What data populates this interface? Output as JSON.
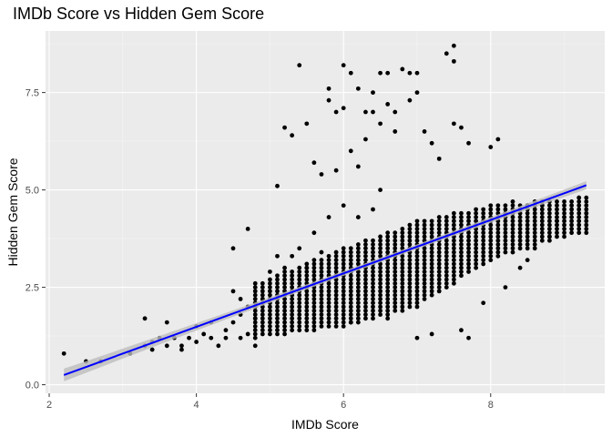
{
  "chart_data": {
    "type": "scatter",
    "title": "IMDb Score vs Hidden Gem Score",
    "xlabel": "IMDb Score",
    "ylabel": "Hidden Gem Score",
    "xlim": [
      1.95,
      9.55
    ],
    "ylim": [
      -0.22,
      9.08
    ],
    "x_ticks": [
      2,
      4,
      6,
      8
    ],
    "x_tick_labels": [
      "2",
      "4",
      "6",
      "8"
    ],
    "y_ticks": [
      0,
      2.5,
      5,
      7.5
    ],
    "y_tick_labels": [
      "0.0",
      "2.5",
      "5.0",
      "7.5"
    ],
    "grid": true,
    "legend": "none",
    "colors": {
      "panel": "#ebebeb",
      "grid_major": "#ffffff",
      "grid_minor": "#f5f5f5",
      "points": "#000000",
      "trend": "#0000ff",
      "ribbon": "#bdbdbd"
    },
    "trend_line": {
      "method": "linear",
      "start": [
        2.2,
        0.25
      ],
      "end": [
        9.3,
        5.12
      ],
      "se_band": true
    },
    "bulk_region": {
      "x_range": [
        4.8,
        9.3
      ],
      "lower": [
        [
          4.8,
          1.2
        ],
        [
          6.0,
          1.5
        ],
        [
          7.0,
          2.0
        ],
        [
          8.0,
          3.2
        ],
        [
          9.2,
          3.9
        ]
      ],
      "upper": [
        [
          4.8,
          2.6
        ],
        [
          6.0,
          3.5
        ],
        [
          7.0,
          4.2
        ],
        [
          8.0,
          4.6
        ],
        [
          9.2,
          4.8
        ]
      ]
    },
    "points": [
      [
        2.2,
        0.8
      ],
      [
        2.5,
        0.6
      ],
      [
        2.7,
        0.6
      ],
      [
        3.1,
        0.8
      ],
      [
        3.3,
        1.7
      ],
      [
        3.3,
        1.0
      ],
      [
        3.4,
        1.1
      ],
      [
        3.4,
        0.9
      ],
      [
        3.5,
        1.2
      ],
      [
        3.6,
        1.6
      ],
      [
        3.6,
        1.0
      ],
      [
        3.7,
        1.2
      ],
      [
        3.8,
        1.0
      ],
      [
        3.8,
        0.9
      ],
      [
        3.9,
        1.2
      ],
      [
        4.0,
        1.5
      ],
      [
        4.0,
        1.1
      ],
      [
        4.1,
        1.3
      ],
      [
        4.2,
        1.6
      ],
      [
        4.2,
        1.2
      ],
      [
        4.3,
        1.0
      ],
      [
        4.4,
        1.4
      ],
      [
        4.4,
        1.2
      ],
      [
        4.5,
        2.4
      ],
      [
        4.5,
        1.6
      ],
      [
        4.6,
        1.8
      ],
      [
        4.6,
        1.2
      ],
      [
        4.7,
        1.3
      ],
      [
        4.8,
        1.7
      ],
      [
        4.8,
        1.0
      ],
      [
        4.5,
        3.5
      ],
      [
        4.7,
        4.0
      ],
      [
        5.2,
        6.6
      ],
      [
        5.3,
        6.4
      ],
      [
        5.4,
        8.2
      ],
      [
        5.5,
        6.7
      ],
      [
        5.1,
        5.1
      ],
      [
        5.6,
        5.7
      ],
      [
        5.7,
        5.4
      ],
      [
        5.8,
        7.6
      ],
      [
        5.8,
        7.3
      ],
      [
        5.9,
        7.0
      ],
      [
        5.9,
        5.5
      ],
      [
        6.0,
        8.2
      ],
      [
        6.0,
        7.1
      ],
      [
        6.1,
        8.0
      ],
      [
        6.1,
        6.0
      ],
      [
        6.2,
        7.6
      ],
      [
        6.2,
        5.6
      ],
      [
        6.3,
        7.0
      ],
      [
        6.3,
        6.3
      ],
      [
        6.4,
        7.5
      ],
      [
        6.4,
        7.0
      ],
      [
        6.5,
        8.0
      ],
      [
        6.5,
        6.7
      ],
      [
        6.6,
        8.0
      ],
      [
        6.6,
        7.2
      ],
      [
        6.7,
        7.0
      ],
      [
        6.7,
        6.5
      ],
      [
        6.8,
        8.1
      ],
      [
        6.9,
        8.0
      ],
      [
        6.9,
        7.3
      ],
      [
        7.0,
        8.0
      ],
      [
        7.0,
        7.5
      ],
      [
        7.1,
        6.5
      ],
      [
        7.2,
        6.2
      ],
      [
        7.3,
        5.8
      ],
      [
        7.4,
        8.5
      ],
      [
        7.5,
        8.3
      ],
      [
        7.5,
        8.7
      ],
      [
        7.5,
        6.7
      ],
      [
        7.6,
        6.6
      ],
      [
        7.7,
        6.2
      ],
      [
        8.1,
        6.3
      ],
      [
        8.0,
        6.1
      ],
      [
        9.2,
        4.8
      ],
      [
        9.3,
        4.4
      ],
      [
        6.0,
        4.6
      ],
      [
        6.4,
        4.5
      ],
      [
        6.5,
        5.0
      ],
      [
        6.2,
        4.3
      ],
      [
        5.8,
        4.3
      ],
      [
        6.1,
        1.6
      ],
      [
        6.6,
        1.7
      ],
      [
        7.0,
        1.2
      ],
      [
        7.2,
        1.3
      ],
      [
        7.6,
        1.4
      ],
      [
        7.7,
        1.2
      ],
      [
        7.9,
        2.1
      ],
      [
        8.2,
        2.5
      ],
      [
        8.4,
        3.0
      ],
      [
        8.5,
        3.2
      ],
      [
        8.6,
        3.5
      ],
      [
        8.8,
        3.8
      ],
      [
        8.9,
        4.2
      ],
      [
        9.0,
        4.3
      ],
      [
        8.3,
        4.7
      ],
      [
        8.5,
        4.6
      ],
      [
        8.7,
        4.6
      ],
      [
        5.0,
        2.9
      ],
      [
        5.1,
        3.3
      ],
      [
        5.2,
        3.0
      ],
      [
        5.3,
        3.3
      ],
      [
        5.4,
        3.5
      ],
      [
        5.5,
        3.0
      ],
      [
        5.6,
        3.9
      ],
      [
        5.7,
        3.4
      ],
      [
        4.9,
        2.2
      ],
      [
        4.7,
        2.0
      ],
      [
        4.6,
        2.2
      ]
    ]
  }
}
